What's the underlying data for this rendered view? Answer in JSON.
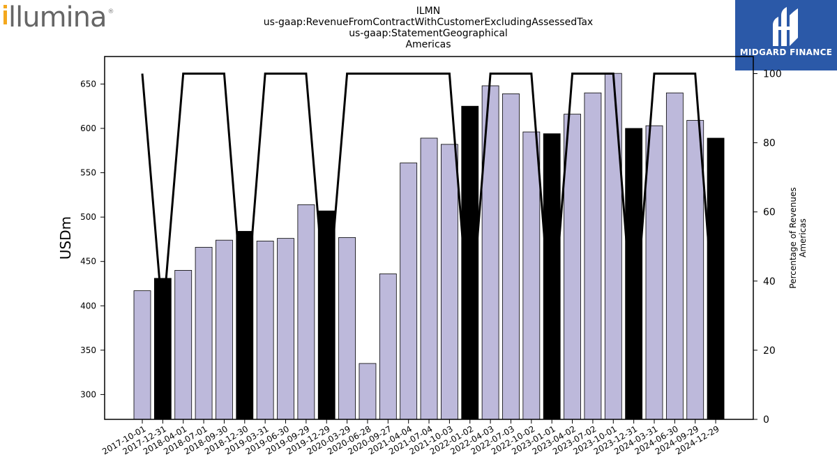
{
  "brand": {
    "left_logo_text": "illumina",
    "right_logo_text": "MIDGARD FINANCE"
  },
  "colors": {
    "bar_default": "#bdb9db",
    "bar_highlight": "#000000",
    "line": "#000000",
    "logo_orange": "#f4a81d",
    "logo_gray": "#666666",
    "right_logo_bg": "#2b59a8"
  },
  "chart_data": {
    "type": "bar",
    "title": [
      "ILMN",
      "us-gaap:RevenueFromContractWithCustomerExcludingAssessedTax",
      "us-gaap:StatementGeographical",
      "Americas"
    ],
    "ylabel": "USDm",
    "y2label": [
      "Percentage of Revenues",
      "Americas"
    ],
    "ylim": [
      272,
      681
    ],
    "y2lim": [
      0,
      100
    ],
    "yticks": [
      300,
      350,
      400,
      450,
      500,
      550,
      600,
      650
    ],
    "y2ticks": [
      0,
      20,
      40,
      60,
      80,
      100
    ],
    "categories": [
      "2017-10-01",
      "2017-12-31",
      "2018-04-01",
      "2018-07-01",
      "2018-09-30",
      "2018-12-30",
      "2019-03-31",
      "2019-06-30",
      "2019-09-29",
      "2019-12-29",
      "2020-03-29",
      "2020-06-28",
      "2020-09-27",
      "2021-04-04",
      "2021-07-04",
      "2021-10-03",
      "2022-01-02",
      "2022-04-03",
      "2022-07-03",
      "2022-10-02",
      "2023-01-01",
      "2023-04-02",
      "2023-07-02",
      "2023-10-01",
      "2023-12-31",
      "2024-03-31",
      "2024-06-30",
      "2024-09-29",
      "2024-12-29"
    ],
    "series": [
      {
        "values": [
          417,
          431,
          440,
          466,
          474,
          484,
          473,
          476,
          514,
          507,
          477,
          335,
          436,
          561,
          589,
          582,
          625,
          648,
          639,
          596,
          594,
          616,
          640,
          662,
          600,
          603,
          640,
          609,
          589
        ],
        "highlight": [
          false,
          true,
          false,
          false,
          false,
          true,
          false,
          false,
          false,
          true,
          false,
          false,
          false,
          false,
          false,
          false,
          true,
          false,
          false,
          false,
          true,
          false,
          false,
          false,
          true,
          false,
          false,
          false,
          true
        ]
      },
      {
        "axis": "right",
        "type": "line",
        "values": [
          100,
          29,
          100,
          100,
          100,
          26,
          100,
          100,
          100,
          29,
          100,
          100,
          100,
          100,
          100,
          100,
          25,
          100,
          100,
          100,
          25,
          100,
          100,
          100,
          24,
          100,
          100,
          100,
          24
        ]
      }
    ]
  }
}
